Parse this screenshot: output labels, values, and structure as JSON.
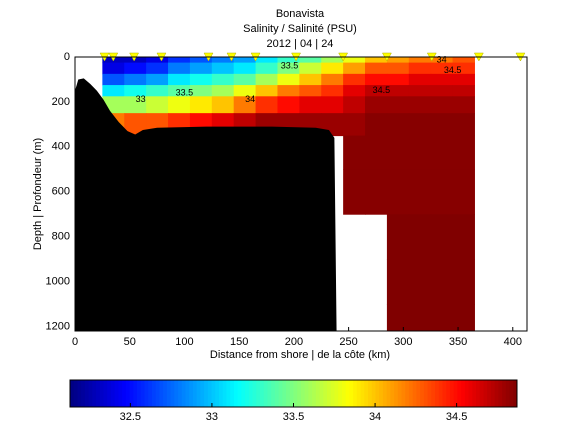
{
  "chart_data": {
    "type": "contour-section",
    "title": "Bonavista",
    "subtitle": "Salinity / Salinité (PSU)",
    "date": "2012 | 04 | 24",
    "xlabel": "Distance from shore | de la côte (km)",
    "ylabel": "Depth | Profondeur (m)",
    "xlim": [
      0,
      413
    ],
    "ylim": [
      0,
      1220
    ],
    "xticks": [
      0,
      50,
      100,
      150,
      200,
      250,
      300,
      350,
      400
    ],
    "yticks": [
      0,
      200,
      400,
      600,
      800,
      1000,
      1200
    ],
    "clim": [
      32.13,
      34.87
    ],
    "cticks": [
      32.5,
      33,
      33.5,
      34,
      34.5
    ],
    "stations": [
      27,
      35,
      54,
      79,
      122,
      143,
      165,
      202,
      245,
      285,
      326,
      369,
      407
    ],
    "columns": [
      35,
      55,
      75,
      95,
      115,
      135,
      155,
      175,
      195,
      215,
      235,
      255,
      275,
      295,
      315,
      335,
      355
    ],
    "depths": [
      0,
      50,
      100,
      150,
      200,
      300,
      400,
      600,
      800,
      1000,
      1200
    ],
    "salinity": [
      [
        32.3,
        32.3,
        32.4,
        32.6,
        32.7,
        32.8,
        32.9,
        33.1,
        33.3,
        33.4,
        33.6,
        33.8,
        34.0,
        34.1,
        34.2,
        34.2,
        34.3
      ],
      [
        32.4,
        32.5,
        32.6,
        32.8,
        32.9,
        33.0,
        33.1,
        33.3,
        33.5,
        33.7,
        33.9,
        34.1,
        34.3,
        34.3,
        34.4,
        34.4,
        34.4
      ],
      [
        32.7,
        32.8,
        32.9,
        33.1,
        33.2,
        33.3,
        33.4,
        33.6,
        33.8,
        34.0,
        34.2,
        34.4,
        34.5,
        34.5,
        34.6,
        34.6,
        34.6
      ],
      [
        33.1,
        33.2,
        33.3,
        33.4,
        33.5,
        33.6,
        33.8,
        34.0,
        34.2,
        34.3,
        34.4,
        34.6,
        34.7,
        34.7,
        34.7,
        34.7,
        34.7
      ],
      [
        33.6,
        33.6,
        33.7,
        33.8,
        33.9,
        34.0,
        34.2,
        34.4,
        34.5,
        34.6,
        34.6,
        34.7,
        34.8,
        34.8,
        34.8,
        34.8,
        34.8
      ],
      [
        34.2,
        34.3,
        34.3,
        34.4,
        34.5,
        34.6,
        34.7,
        34.8,
        34.8,
        34.8,
        34.8,
        34.8,
        34.85,
        34.85,
        34.85,
        34.85,
        34.85
      ],
      [
        null,
        null,
        null,
        null,
        null,
        null,
        null,
        null,
        null,
        null,
        null,
        34.85,
        34.85,
        34.85,
        34.85,
        34.85,
        34.85
      ],
      [
        null,
        null,
        null,
        null,
        null,
        null,
        null,
        null,
        null,
        null,
        null,
        34.85,
        34.85,
        34.85,
        34.85,
        34.85,
        34.85
      ],
      [
        null,
        null,
        null,
        null,
        null,
        null,
        null,
        null,
        null,
        null,
        null,
        null,
        null,
        34.88,
        34.88,
        34.88,
        34.88
      ],
      [
        null,
        null,
        null,
        null,
        null,
        null,
        null,
        null,
        null,
        null,
        null,
        null,
        null,
        34.88,
        34.88,
        34.88,
        34.88
      ],
      [
        null,
        null,
        null,
        null,
        null,
        null,
        null,
        null,
        null,
        null,
        null,
        null,
        null,
        34.88,
        34.88,
        34.88,
        34.88
      ]
    ],
    "bathymetry": {
      "x": [
        0,
        3,
        8,
        14,
        20,
        26,
        32,
        40,
        48,
        55,
        62,
        75,
        120,
        180,
        220,
        232,
        237,
        239
      ],
      "depth": [
        150,
        100,
        95,
        120,
        150,
        190,
        240,
        290,
        330,
        345,
        325,
        315,
        310,
        310,
        315,
        325,
        360,
        1220
      ]
    },
    "contour_labels": [
      {
        "x": 196,
        "depth": 40,
        "value": 33.5
      },
      {
        "x": 335,
        "depth": 15,
        "value": 34
      },
      {
        "x": 345,
        "depth": 60,
        "value": 34.5
      },
      {
        "x": 280,
        "depth": 150,
        "value": 34.5
      },
      {
        "x": 160,
        "depth": 190,
        "value": 34
      },
      {
        "x": 100,
        "depth": 160,
        "value": 33.5
      },
      {
        "x": 60,
        "depth": 190,
        "value": 33
      }
    ]
  }
}
